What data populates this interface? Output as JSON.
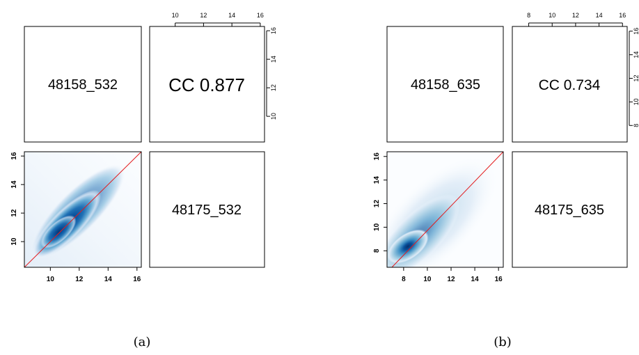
{
  "chart_data": [
    {
      "type": "scatter",
      "panel": "(a)",
      "variables": [
        "48158_532",
        "48175_532"
      ],
      "correlation_label": "CC 0.877",
      "x_ticks": [
        10,
        12,
        14,
        16
      ],
      "y_ticks": [
        10,
        12,
        14,
        16
      ],
      "xlim": [
        8.2,
        16.3
      ],
      "ylim": [
        8.2,
        16.3
      ],
      "reference_line": "y = x",
      "density_center": [
        11.0,
        11.0
      ],
      "density_spread_major": 1.6,
      "density_spread_minor": 0.55
    },
    {
      "type": "scatter",
      "panel": "(b)",
      "variables": [
        "48158_635",
        "48175_635"
      ],
      "correlation_label": "CC 0.734",
      "x_ticks": [
        8,
        10,
        12,
        14,
        16
      ],
      "y_ticks": [
        8,
        10,
        12,
        14,
        16
      ],
      "xlim": [
        6.6,
        16.4
      ],
      "ylim": [
        6.6,
        16.4
      ],
      "reference_line": "y = x",
      "density_center": [
        8.4,
        8.4
      ],
      "density_spread_major": 1.9,
      "density_spread_minor": 0.8
    }
  ],
  "captions": [
    "(a)",
    "(b)"
  ],
  "colors": {
    "density_dark": "#08306b",
    "density_light": "#f7fbff",
    "line": "#e31a1c"
  }
}
